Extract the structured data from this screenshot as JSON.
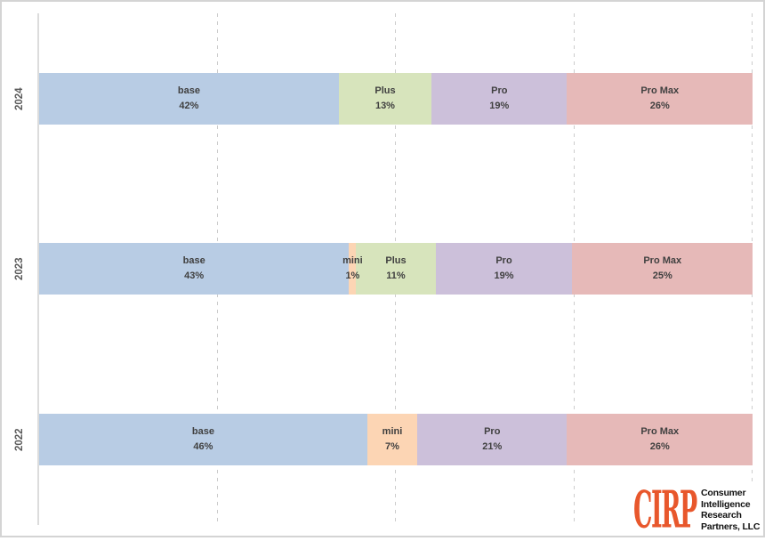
{
  "chart_data": {
    "type": "bar",
    "variant": "horizontal-100pct-stacked",
    "title": "",
    "xlabel": "",
    "ylabel": "",
    "categories": [
      "2024",
      "2023",
      "2022"
    ],
    "value_suffix": "%",
    "series": [
      {
        "name": "base",
        "color": "#b8cce4",
        "values": [
          42,
          43,
          46
        ]
      },
      {
        "name": "mini",
        "color": "#fcd5b4",
        "values": [
          null,
          1,
          7
        ]
      },
      {
        "name": "Plus",
        "color": "#d7e4bc",
        "values": [
          13,
          11,
          null
        ]
      },
      {
        "name": "Pro",
        "color": "#ccc0da",
        "values": [
          19,
          19,
          21
        ]
      },
      {
        "name": "Pro Max",
        "color": "#e6b9b8",
        "values": [
          26,
          25,
          26
        ]
      }
    ],
    "xlim": [
      0,
      100
    ],
    "gridlines_pct": [
      25,
      50,
      75,
      100
    ],
    "gridline_style": "dashed",
    "axis_tick_labels_visible": false,
    "legend": "none",
    "data_labels": "name-and-percent-inside-segments"
  },
  "style": {
    "label_color": "#404040",
    "axis_label_color": "#595959",
    "gridline_color": "#cccccc",
    "axis_line_color": "#dcdcdc",
    "frame_border_color": "#d4d4d4",
    "background": "#ffffff"
  },
  "logo": {
    "brand": "CIRP",
    "brand_color": "#e8572c",
    "text_color": "#111111",
    "lines": [
      "Consumer",
      "Intelligence",
      "Research",
      "Partners, LLC"
    ]
  }
}
